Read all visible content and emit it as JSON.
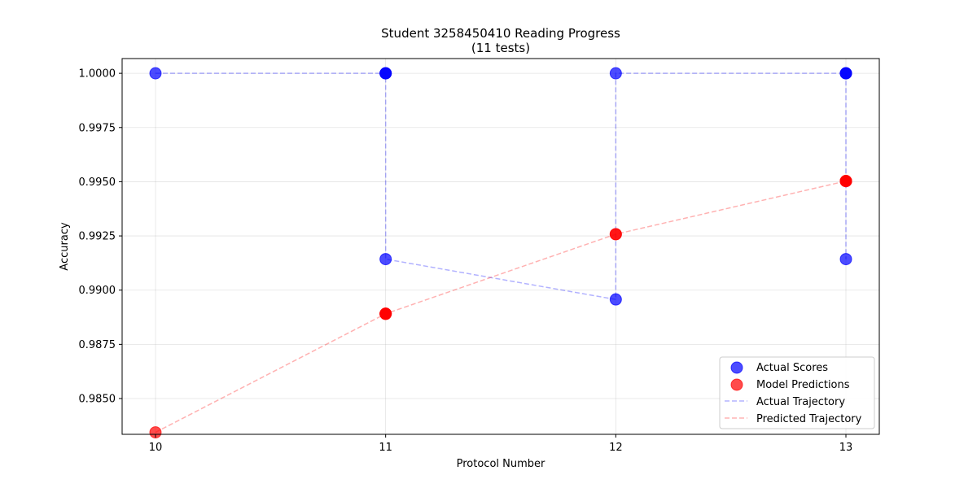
{
  "chart_data": {
    "type": "scatter",
    "title": "Student 3258450410 Reading Progress",
    "subtitle": "(11 tests)",
    "xlabel": "Protocol Number",
    "ylabel": "Accuracy",
    "xlim": [
      9.855,
      13.145
    ],
    "ylim": [
      0.98335,
      1.00068
    ],
    "x_ticks": [
      10,
      11,
      12,
      13
    ],
    "x_tick_labels": [
      "10",
      "11",
      "12",
      "13"
    ],
    "y_ticks": [
      0.985,
      0.9875,
      0.99,
      0.9925,
      0.995,
      0.9975,
      1.0
    ],
    "y_tick_labels": [
      "0.9850",
      "0.9875",
      "0.9900",
      "0.9925",
      "0.9950",
      "0.9975",
      "1.0000"
    ],
    "grid": true,
    "legend_position": "lower-right",
    "series": [
      {
        "name": "Actual Scores",
        "kind": "scatter",
        "color": "#0000ff",
        "x": [
          10,
          11,
          11,
          11,
          11,
          12,
          12,
          13,
          13,
          13,
          13
        ],
        "y": [
          1.0,
          1.0,
          1.0,
          1.0,
          0.99143,
          0.98957,
          1.0,
          1.0,
          1.0,
          1.0,
          0.99143
        ]
      },
      {
        "name": "Model Predictions",
        "kind": "scatter",
        "color": "#ff0000",
        "x": [
          10,
          11,
          11,
          11,
          11,
          12,
          12,
          13,
          13,
          13,
          13
        ],
        "y": [
          0.98344,
          0.98891,
          0.98891,
          0.98891,
          0.98891,
          0.99258,
          0.99258,
          0.99503,
          0.99503,
          0.99503,
          0.99503
        ]
      },
      {
        "name": "Actual Trajectory",
        "kind": "line",
        "color": "#0000ff",
        "x": [
          10,
          11,
          11,
          11,
          11,
          12,
          12,
          13,
          13,
          13,
          13
        ],
        "y": [
          1.0,
          1.0,
          1.0,
          1.0,
          0.99143,
          0.98957,
          1.0,
          1.0,
          1.0,
          1.0,
          0.99143
        ]
      },
      {
        "name": "Predicted Trajectory",
        "kind": "line",
        "color": "#ff0000",
        "x": [
          10,
          11,
          11,
          11,
          11,
          12,
          12,
          13,
          13,
          13,
          13
        ],
        "y": [
          0.98344,
          0.98891,
          0.98891,
          0.98891,
          0.98891,
          0.99258,
          0.99258,
          0.99503,
          0.99503,
          0.99503,
          0.99503
        ]
      }
    ]
  }
}
